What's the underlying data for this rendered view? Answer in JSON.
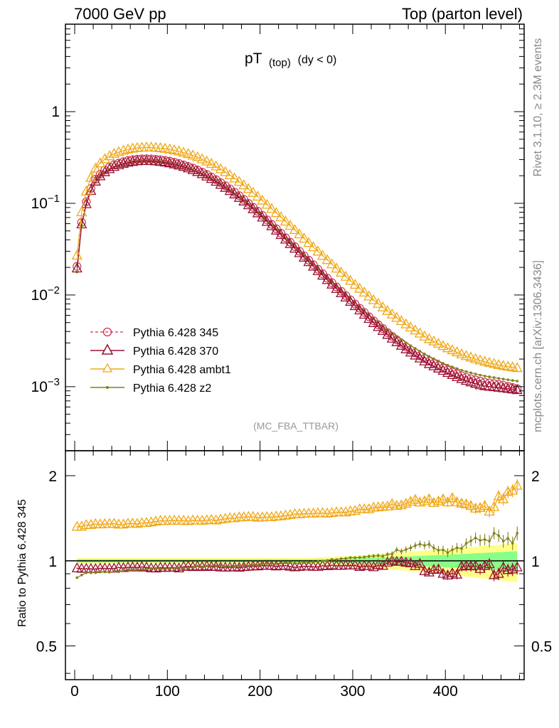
{
  "header": {
    "left": "7000 GeV pp",
    "right": "Top (parton level)"
  },
  "side_labels": {
    "rivet": "Rivet 3.1.10, ≥ 2.3M events",
    "mcplots": "mcplots.cern.ch [arXiv:1306.3436]"
  },
  "chart_data": [
    {
      "type": "line",
      "panel": "main",
      "title_main": "pT",
      "title_sub": "(top)",
      "title_cut": "(dy < 0)",
      "watermark": "(MC_FBA_TTBAR)",
      "yscale": "log",
      "ylim": [
        0.0002,
        9
      ],
      "xlim": [
        -10,
        485
      ],
      "ytick_labels": [
        {
          "value": 0.001,
          "base": "10",
          "exp": "−3"
        },
        {
          "value": 0.01,
          "base": "10",
          "exp": "−2"
        },
        {
          "value": 0.1,
          "base": "10",
          "exp": "−1"
        },
        {
          "value": 1,
          "base": "1",
          "exp": ""
        }
      ],
      "legend_position": "bottom-left",
      "series": [
        {
          "name": "Pythia 6.428 345",
          "color": "#cc3355",
          "style": "dashed",
          "marker": "circle-open",
          "anchors": [
            [
              2.5,
              0.0205
            ],
            [
              7.5,
              0.062
            ],
            [
              12.5,
              0.104
            ],
            [
              17.5,
              0.145
            ],
            [
              22.5,
              0.183
            ],
            [
              30,
              0.222
            ],
            [
              40,
              0.258
            ],
            [
              50,
              0.28
            ],
            [
              60,
              0.297
            ],
            [
              70,
              0.305
            ],
            [
              80,
              0.306
            ],
            [
              90,
              0.301
            ],
            [
              100,
              0.292
            ],
            [
              110,
              0.277
            ],
            [
              120,
              0.258
            ],
            [
              130,
              0.238
            ],
            [
              140,
              0.213
            ],
            [
              150,
              0.188
            ],
            [
              160,
              0.162
            ],
            [
              170,
              0.138
            ],
            [
              180,
              0.116
            ],
            [
              190,
              0.095
            ],
            [
              200,
              0.078
            ],
            [
              220,
              0.05
            ],
            [
              240,
              0.0318
            ],
            [
              260,
              0.0202
            ],
            [
              280,
              0.0129
            ],
            [
              300,
              0.0084
            ],
            [
              320,
              0.0055
            ],
            [
              340,
              0.0037
            ],
            [
              360,
              0.0026
            ],
            [
              380,
              0.00195
            ],
            [
              400,
              0.00155
            ],
            [
              420,
              0.00128
            ],
            [
              440,
              0.00113
            ],
            [
              460,
              0.00105
            ],
            [
              477.5,
              0.00095
            ]
          ]
        },
        {
          "name": "Pythia 6.428 370",
          "color": "#991133",
          "style": "solid",
          "marker": "triangle-open",
          "anchors": [
            [
              2.5,
              0.0195
            ],
            [
              7.5,
              0.059
            ],
            [
              12.5,
              0.098
            ],
            [
              17.5,
              0.137
            ],
            [
              22.5,
              0.173
            ],
            [
              30,
              0.211
            ],
            [
              40,
              0.245
            ],
            [
              50,
              0.266
            ],
            [
              60,
              0.282
            ],
            [
              70,
              0.29
            ],
            [
              80,
              0.291
            ],
            [
              90,
              0.286
            ],
            [
              100,
              0.277
            ],
            [
              110,
              0.263
            ],
            [
              120,
              0.246
            ],
            [
              130,
              0.226
            ],
            [
              140,
              0.203
            ],
            [
              150,
              0.179
            ],
            [
              160,
              0.154
            ],
            [
              170,
              0.131
            ],
            [
              180,
              0.11
            ],
            [
              190,
              0.091
            ],
            [
              200,
              0.074
            ],
            [
              220,
              0.0478
            ],
            [
              240,
              0.0303
            ],
            [
              260,
              0.0193
            ],
            [
              280,
              0.0123
            ],
            [
              300,
              0.008
            ],
            [
              320,
              0.0052
            ],
            [
              340,
              0.0035
            ],
            [
              360,
              0.00245
            ],
            [
              380,
              0.00182
            ],
            [
              400,
              0.00145
            ],
            [
              420,
              0.00118
            ],
            [
              440,
              0.00102
            ],
            [
              460,
              0.00097
            ],
            [
              477.5,
              0.00092
            ]
          ]
        },
        {
          "name": "Pythia 6.428 ambt1",
          "color": "#f0a818",
          "style": "solid",
          "marker": "triangle-open",
          "anchors": [
            [
              2.5,
              0.027
            ],
            [
              7.5,
              0.08
            ],
            [
              12.5,
              0.135
            ],
            [
              17.5,
              0.19
            ],
            [
              22.5,
              0.24
            ],
            [
              30,
              0.292
            ],
            [
              40,
              0.34
            ],
            [
              50,
              0.37
            ],
            [
              60,
              0.393
            ],
            [
              70,
              0.405
            ],
            [
              80,
              0.408
            ],
            [
              90,
              0.403
            ],
            [
              100,
              0.392
            ],
            [
              110,
              0.375
            ],
            [
              120,
              0.352
            ],
            [
              130,
              0.327
            ],
            [
              140,
              0.295
            ],
            [
              150,
              0.262
            ],
            [
              160,
              0.228
            ],
            [
              170,
              0.195
            ],
            [
              180,
              0.165
            ],
            [
              190,
              0.137
            ],
            [
              200,
              0.113
            ],
            [
              220,
              0.0745
            ],
            [
              240,
              0.0485
            ],
            [
              260,
              0.0315
            ],
            [
              280,
              0.0205
            ],
            [
              300,
              0.0136
            ],
            [
              320,
              0.0092
            ],
            [
              340,
              0.0064
            ],
            [
              360,
              0.0046
            ],
            [
              380,
              0.0034
            ],
            [
              400,
              0.0027
            ],
            [
              420,
              0.0022
            ],
            [
              440,
              0.0019
            ],
            [
              460,
              0.0017
            ],
            [
              477.5,
              0.0016
            ]
          ]
        },
        {
          "name": "Pythia 6.428 z2",
          "color": "#808018",
          "style": "solid",
          "marker": "dot",
          "anchors": [
            [
              2.5,
              0.0178
            ],
            [
              7.5,
              0.057
            ],
            [
              12.5,
              0.097
            ],
            [
              17.5,
              0.136
            ],
            [
              22.5,
              0.171
            ],
            [
              30,
              0.209
            ],
            [
              40,
              0.243
            ],
            [
              50,
              0.265
            ],
            [
              60,
              0.281
            ],
            [
              70,
              0.289
            ],
            [
              80,
              0.29
            ],
            [
              90,
              0.286
            ],
            [
              100,
              0.277
            ],
            [
              110,
              0.264
            ],
            [
              120,
              0.247
            ],
            [
              130,
              0.227
            ],
            [
              140,
              0.204
            ],
            [
              150,
              0.181
            ],
            [
              160,
              0.156
            ],
            [
              170,
              0.133
            ],
            [
              180,
              0.112
            ],
            [
              190,
              0.093
            ],
            [
              200,
              0.076
            ],
            [
              220,
              0.0492
            ],
            [
              240,
              0.0316
            ],
            [
              260,
              0.0203
            ],
            [
              280,
              0.0131
            ],
            [
              300,
              0.0087
            ],
            [
              320,
              0.0058
            ],
            [
              340,
              0.004
            ],
            [
              360,
              0.0029
            ],
            [
              380,
              0.0022
            ],
            [
              400,
              0.00175
            ],
            [
              420,
              0.00148
            ],
            [
              440,
              0.00132
            ],
            [
              460,
              0.00122
            ],
            [
              477.5,
              0.00115
            ]
          ]
        }
      ]
    },
    {
      "type": "line",
      "panel": "ratio",
      "ylabel": "Ratio to Pythia 6.428 345",
      "yscale": "log",
      "ylim": [
        0.38,
        2.45
      ],
      "xlim": [
        -10,
        485
      ],
      "reference": 1,
      "ytick_labels": [
        {
          "value": 0.5,
          "label": "0.5"
        },
        {
          "value": 1,
          "label": "1"
        },
        {
          "value": 2,
          "label": "2"
        }
      ],
      "xtick_labels": [
        {
          "value": 0,
          "label": "0"
        },
        {
          "value": 100,
          "label": "100"
        },
        {
          "value": 200,
          "label": "200"
        },
        {
          "value": 300,
          "label": "300"
        },
        {
          "value": 400,
          "label": "400"
        }
      ],
      "uncertainty_bands": {
        "yellow": "#ffff88",
        "green": "#88ff88"
      },
      "series": [
        {
          "name": "Pythia 6.428 370",
          "color": "#991133",
          "marker": "triangle-open",
          "anchors": [
            [
              2.5,
              0.94
            ],
            [
              100,
              0.947
            ],
            [
              200,
              0.955
            ],
            [
              280,
              0.958
            ],
            [
              320,
              0.96
            ],
            [
              340,
              0.99
            ],
            [
              360,
              0.97
            ],
            [
              380,
              0.94
            ],
            [
              400,
              0.93
            ],
            [
              420,
              0.92
            ],
            [
              440,
              0.93
            ],
            [
              460,
              0.95
            ],
            [
              477.5,
              0.96
            ]
          ]
        },
        {
          "name": "Pythia 6.428 ambt1",
          "color": "#f0a818",
          "marker": "triangle-open",
          "anchors": [
            [
              2.5,
              1.33
            ],
            [
              50,
              1.35
            ],
            [
              100,
              1.38
            ],
            [
              150,
              1.4
            ],
            [
              200,
              1.43
            ],
            [
              250,
              1.46
            ],
            [
              300,
              1.5
            ],
            [
              330,
              1.53
            ],
            [
              350,
              1.58
            ],
            [
              370,
              1.66
            ],
            [
              390,
              1.58
            ],
            [
              410,
              1.6
            ],
            [
              430,
              1.58
            ],
            [
              450,
              1.56
            ],
            [
              465,
              1.65
            ],
            [
              477.5,
              1.76
            ]
          ]
        },
        {
          "name": "Pythia 6.428 z2",
          "color": "#808018",
          "marker": "dot",
          "anchors": [
            [
              2.5,
              0.87
            ],
            [
              12.5,
              0.905
            ],
            [
              30,
              0.915
            ],
            [
              60,
              0.925
            ],
            [
              100,
              0.945
            ],
            [
              150,
              0.955
            ],
            [
              200,
              0.97
            ],
            [
              250,
              0.99
            ],
            [
              300,
              1.02
            ],
            [
              340,
              1.06
            ],
            [
              360,
              1.09
            ],
            [
              380,
              1.12
            ],
            [
              400,
              1.12
            ],
            [
              420,
              1.13
            ],
            [
              440,
              1.15
            ],
            [
              460,
              1.2
            ],
            [
              477.5,
              1.26
            ]
          ]
        }
      ]
    }
  ]
}
